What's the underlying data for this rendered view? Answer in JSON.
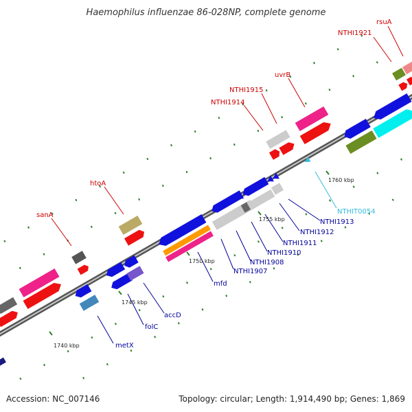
{
  "title": "Haemophilus influenzae 86-028NP, complete genome",
  "footer": {
    "accession": "Accession: NC_007146",
    "summary": "Topology: circular; Length: 1,914,490 bp; Genes: 1,869"
  },
  "axis_ticks": [
    "1740 kbp",
    "1745 kbp",
    "1750 kbp",
    "1755 kbp",
    "1760 kbp"
  ],
  "colors": {
    "backbone": "#808080",
    "label_red": "#cc0000",
    "label_blue": "#000099",
    "label_cyan": "#33bbdd",
    "tick_mark": "#2e7d2e"
  },
  "genes": [
    {
      "name": "sanA",
      "color": "red"
    },
    {
      "name": "htoA",
      "color": "red"
    },
    {
      "name": "NTHI1914",
      "color": "red"
    },
    {
      "name": "NTHI1915",
      "color": "red"
    },
    {
      "name": "uvrB",
      "color": "red"
    },
    {
      "name": "NTHI1921",
      "color": "red"
    },
    {
      "name": "rsuA",
      "color": "red"
    },
    {
      "name": "metX",
      "color": "blue"
    },
    {
      "name": "folC",
      "color": "blue"
    },
    {
      "name": "accD",
      "color": "blue"
    },
    {
      "name": "mfd",
      "color": "blue"
    },
    {
      "name": "NTHI1907",
      "color": "blue"
    },
    {
      "name": "NTHI1908",
      "color": "blue"
    },
    {
      "name": "NTHI1910",
      "color": "blue"
    },
    {
      "name": "NTHI1911",
      "color": "blue"
    },
    {
      "name": "NTHI1912",
      "color": "blue"
    },
    {
      "name": "NTHI1913",
      "color": "blue"
    },
    {
      "name": "NTHIT0054",
      "color": "cyan"
    }
  ]
}
